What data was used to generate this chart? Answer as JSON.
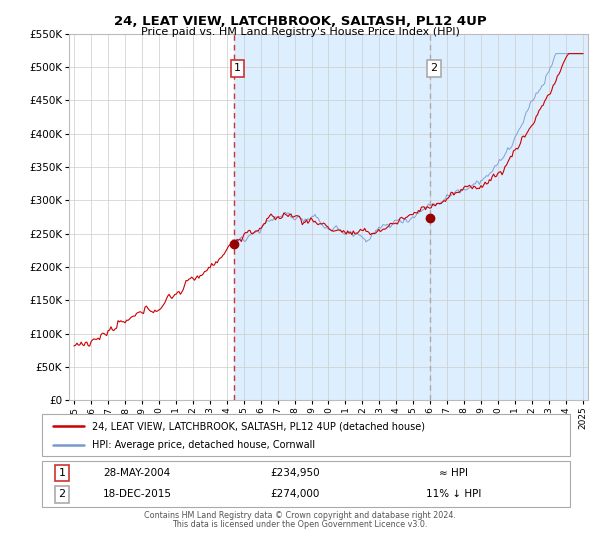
{
  "title": "24, LEAT VIEW, LATCHBROOK, SALTASH, PL12 4UP",
  "subtitle": "Price paid vs. HM Land Registry's House Price Index (HPI)",
  "legend_line1": "24, LEAT VIEW, LATCHBROOK, SALTASH, PL12 4UP (detached house)",
  "legend_line2": "HPI: Average price, detached house, Cornwall",
  "footnote1": "Contains HM Land Registry data © Crown copyright and database right 2024.",
  "footnote2": "This data is licensed under the Open Government Licence v3.0.",
  "hpi_color": "#7799cc",
  "price_color": "#cc0000",
  "marker_color": "#990000",
  "vline1_color": "#cc3333",
  "vline2_color": "#aaaaaa",
  "bg_color": "#ddeeff",
  "grid_color": "#cccccc",
  "plot_bg": "#ffffff",
  "ylim": [
    0,
    550000
  ],
  "yticks": [
    0,
    50000,
    100000,
    150000,
    200000,
    250000,
    300000,
    350000,
    400000,
    450000,
    500000,
    550000
  ],
  "xlim_start": 1994.7,
  "xlim_end": 2025.3,
  "transaction1_date": 2004.4,
  "transaction1_price": 234950,
  "transaction1_label": "28-MAY-2004",
  "transaction1_value": "£234,950",
  "transaction1_note": "≈ HPI",
  "transaction2_date": 2015.96,
  "transaction2_price": 274000,
  "transaction2_label": "18-DEC-2015",
  "transaction2_value": "£274,000",
  "transaction2_note": "11% ↓ HPI",
  "box1_label": "1",
  "box2_label": "2"
}
